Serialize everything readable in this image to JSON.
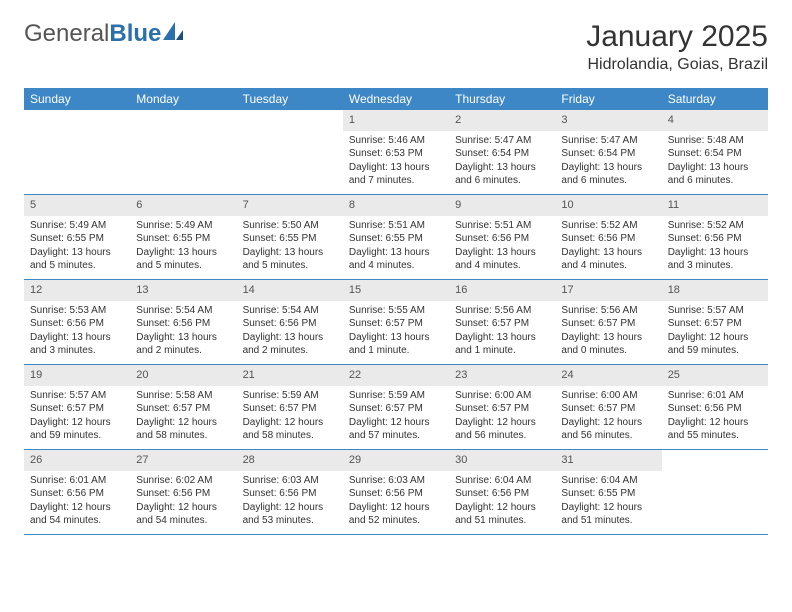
{
  "logo": {
    "part1": "General",
    "part2": "Blue"
  },
  "title": "January 2025",
  "location": "Hidrolandia, Goias, Brazil",
  "colors": {
    "header_bg": "#3d87c7",
    "header_text": "#ffffff",
    "daynum_bg": "#eaeaea",
    "border": "#3d87c7",
    "body_text": "#333333",
    "logo_gray": "#555555",
    "logo_blue": "#2c6fad"
  },
  "fonts": {
    "title_size": 30,
    "location_size": 16,
    "header_size": 12,
    "body_size": 10
  },
  "day_names": [
    "Sunday",
    "Monday",
    "Tuesday",
    "Wednesday",
    "Thursday",
    "Friday",
    "Saturday"
  ],
  "weeks": [
    [
      {
        "n": "",
        "empty": true
      },
      {
        "n": "",
        "empty": true
      },
      {
        "n": "",
        "empty": true
      },
      {
        "n": "1",
        "sr": "Sunrise: 5:46 AM",
        "ss": "Sunset: 6:53 PM",
        "dl": "Daylight: 13 hours and 7 minutes."
      },
      {
        "n": "2",
        "sr": "Sunrise: 5:47 AM",
        "ss": "Sunset: 6:54 PM",
        "dl": "Daylight: 13 hours and 6 minutes."
      },
      {
        "n": "3",
        "sr": "Sunrise: 5:47 AM",
        "ss": "Sunset: 6:54 PM",
        "dl": "Daylight: 13 hours and 6 minutes."
      },
      {
        "n": "4",
        "sr": "Sunrise: 5:48 AM",
        "ss": "Sunset: 6:54 PM",
        "dl": "Daylight: 13 hours and 6 minutes."
      }
    ],
    [
      {
        "n": "5",
        "sr": "Sunrise: 5:49 AM",
        "ss": "Sunset: 6:55 PM",
        "dl": "Daylight: 13 hours and 5 minutes."
      },
      {
        "n": "6",
        "sr": "Sunrise: 5:49 AM",
        "ss": "Sunset: 6:55 PM",
        "dl": "Daylight: 13 hours and 5 minutes."
      },
      {
        "n": "7",
        "sr": "Sunrise: 5:50 AM",
        "ss": "Sunset: 6:55 PM",
        "dl": "Daylight: 13 hours and 5 minutes."
      },
      {
        "n": "8",
        "sr": "Sunrise: 5:51 AM",
        "ss": "Sunset: 6:55 PM",
        "dl": "Daylight: 13 hours and 4 minutes."
      },
      {
        "n": "9",
        "sr": "Sunrise: 5:51 AM",
        "ss": "Sunset: 6:56 PM",
        "dl": "Daylight: 13 hours and 4 minutes."
      },
      {
        "n": "10",
        "sr": "Sunrise: 5:52 AM",
        "ss": "Sunset: 6:56 PM",
        "dl": "Daylight: 13 hours and 4 minutes."
      },
      {
        "n": "11",
        "sr": "Sunrise: 5:52 AM",
        "ss": "Sunset: 6:56 PM",
        "dl": "Daylight: 13 hours and 3 minutes."
      }
    ],
    [
      {
        "n": "12",
        "sr": "Sunrise: 5:53 AM",
        "ss": "Sunset: 6:56 PM",
        "dl": "Daylight: 13 hours and 3 minutes."
      },
      {
        "n": "13",
        "sr": "Sunrise: 5:54 AM",
        "ss": "Sunset: 6:56 PM",
        "dl": "Daylight: 13 hours and 2 minutes."
      },
      {
        "n": "14",
        "sr": "Sunrise: 5:54 AM",
        "ss": "Sunset: 6:56 PM",
        "dl": "Daylight: 13 hours and 2 minutes."
      },
      {
        "n": "15",
        "sr": "Sunrise: 5:55 AM",
        "ss": "Sunset: 6:57 PM",
        "dl": "Daylight: 13 hours and 1 minute."
      },
      {
        "n": "16",
        "sr": "Sunrise: 5:56 AM",
        "ss": "Sunset: 6:57 PM",
        "dl": "Daylight: 13 hours and 1 minute."
      },
      {
        "n": "17",
        "sr": "Sunrise: 5:56 AM",
        "ss": "Sunset: 6:57 PM",
        "dl": "Daylight: 13 hours and 0 minutes."
      },
      {
        "n": "18",
        "sr": "Sunrise: 5:57 AM",
        "ss": "Sunset: 6:57 PM",
        "dl": "Daylight: 12 hours and 59 minutes."
      }
    ],
    [
      {
        "n": "19",
        "sr": "Sunrise: 5:57 AM",
        "ss": "Sunset: 6:57 PM",
        "dl": "Daylight: 12 hours and 59 minutes."
      },
      {
        "n": "20",
        "sr": "Sunrise: 5:58 AM",
        "ss": "Sunset: 6:57 PM",
        "dl": "Daylight: 12 hours and 58 minutes."
      },
      {
        "n": "21",
        "sr": "Sunrise: 5:59 AM",
        "ss": "Sunset: 6:57 PM",
        "dl": "Daylight: 12 hours and 58 minutes."
      },
      {
        "n": "22",
        "sr": "Sunrise: 5:59 AM",
        "ss": "Sunset: 6:57 PM",
        "dl": "Daylight: 12 hours and 57 minutes."
      },
      {
        "n": "23",
        "sr": "Sunrise: 6:00 AM",
        "ss": "Sunset: 6:57 PM",
        "dl": "Daylight: 12 hours and 56 minutes."
      },
      {
        "n": "24",
        "sr": "Sunrise: 6:00 AM",
        "ss": "Sunset: 6:57 PM",
        "dl": "Daylight: 12 hours and 56 minutes."
      },
      {
        "n": "25",
        "sr": "Sunrise: 6:01 AM",
        "ss": "Sunset: 6:56 PM",
        "dl": "Daylight: 12 hours and 55 minutes."
      }
    ],
    [
      {
        "n": "26",
        "sr": "Sunrise: 6:01 AM",
        "ss": "Sunset: 6:56 PM",
        "dl": "Daylight: 12 hours and 54 minutes."
      },
      {
        "n": "27",
        "sr": "Sunrise: 6:02 AM",
        "ss": "Sunset: 6:56 PM",
        "dl": "Daylight: 12 hours and 54 minutes."
      },
      {
        "n": "28",
        "sr": "Sunrise: 6:03 AM",
        "ss": "Sunset: 6:56 PM",
        "dl": "Daylight: 12 hours and 53 minutes."
      },
      {
        "n": "29",
        "sr": "Sunrise: 6:03 AM",
        "ss": "Sunset: 6:56 PM",
        "dl": "Daylight: 12 hours and 52 minutes."
      },
      {
        "n": "30",
        "sr": "Sunrise: 6:04 AM",
        "ss": "Sunset: 6:56 PM",
        "dl": "Daylight: 12 hours and 51 minutes."
      },
      {
        "n": "31",
        "sr": "Sunrise: 6:04 AM",
        "ss": "Sunset: 6:55 PM",
        "dl": "Daylight: 12 hours and 51 minutes."
      },
      {
        "n": "",
        "empty": true
      }
    ]
  ]
}
